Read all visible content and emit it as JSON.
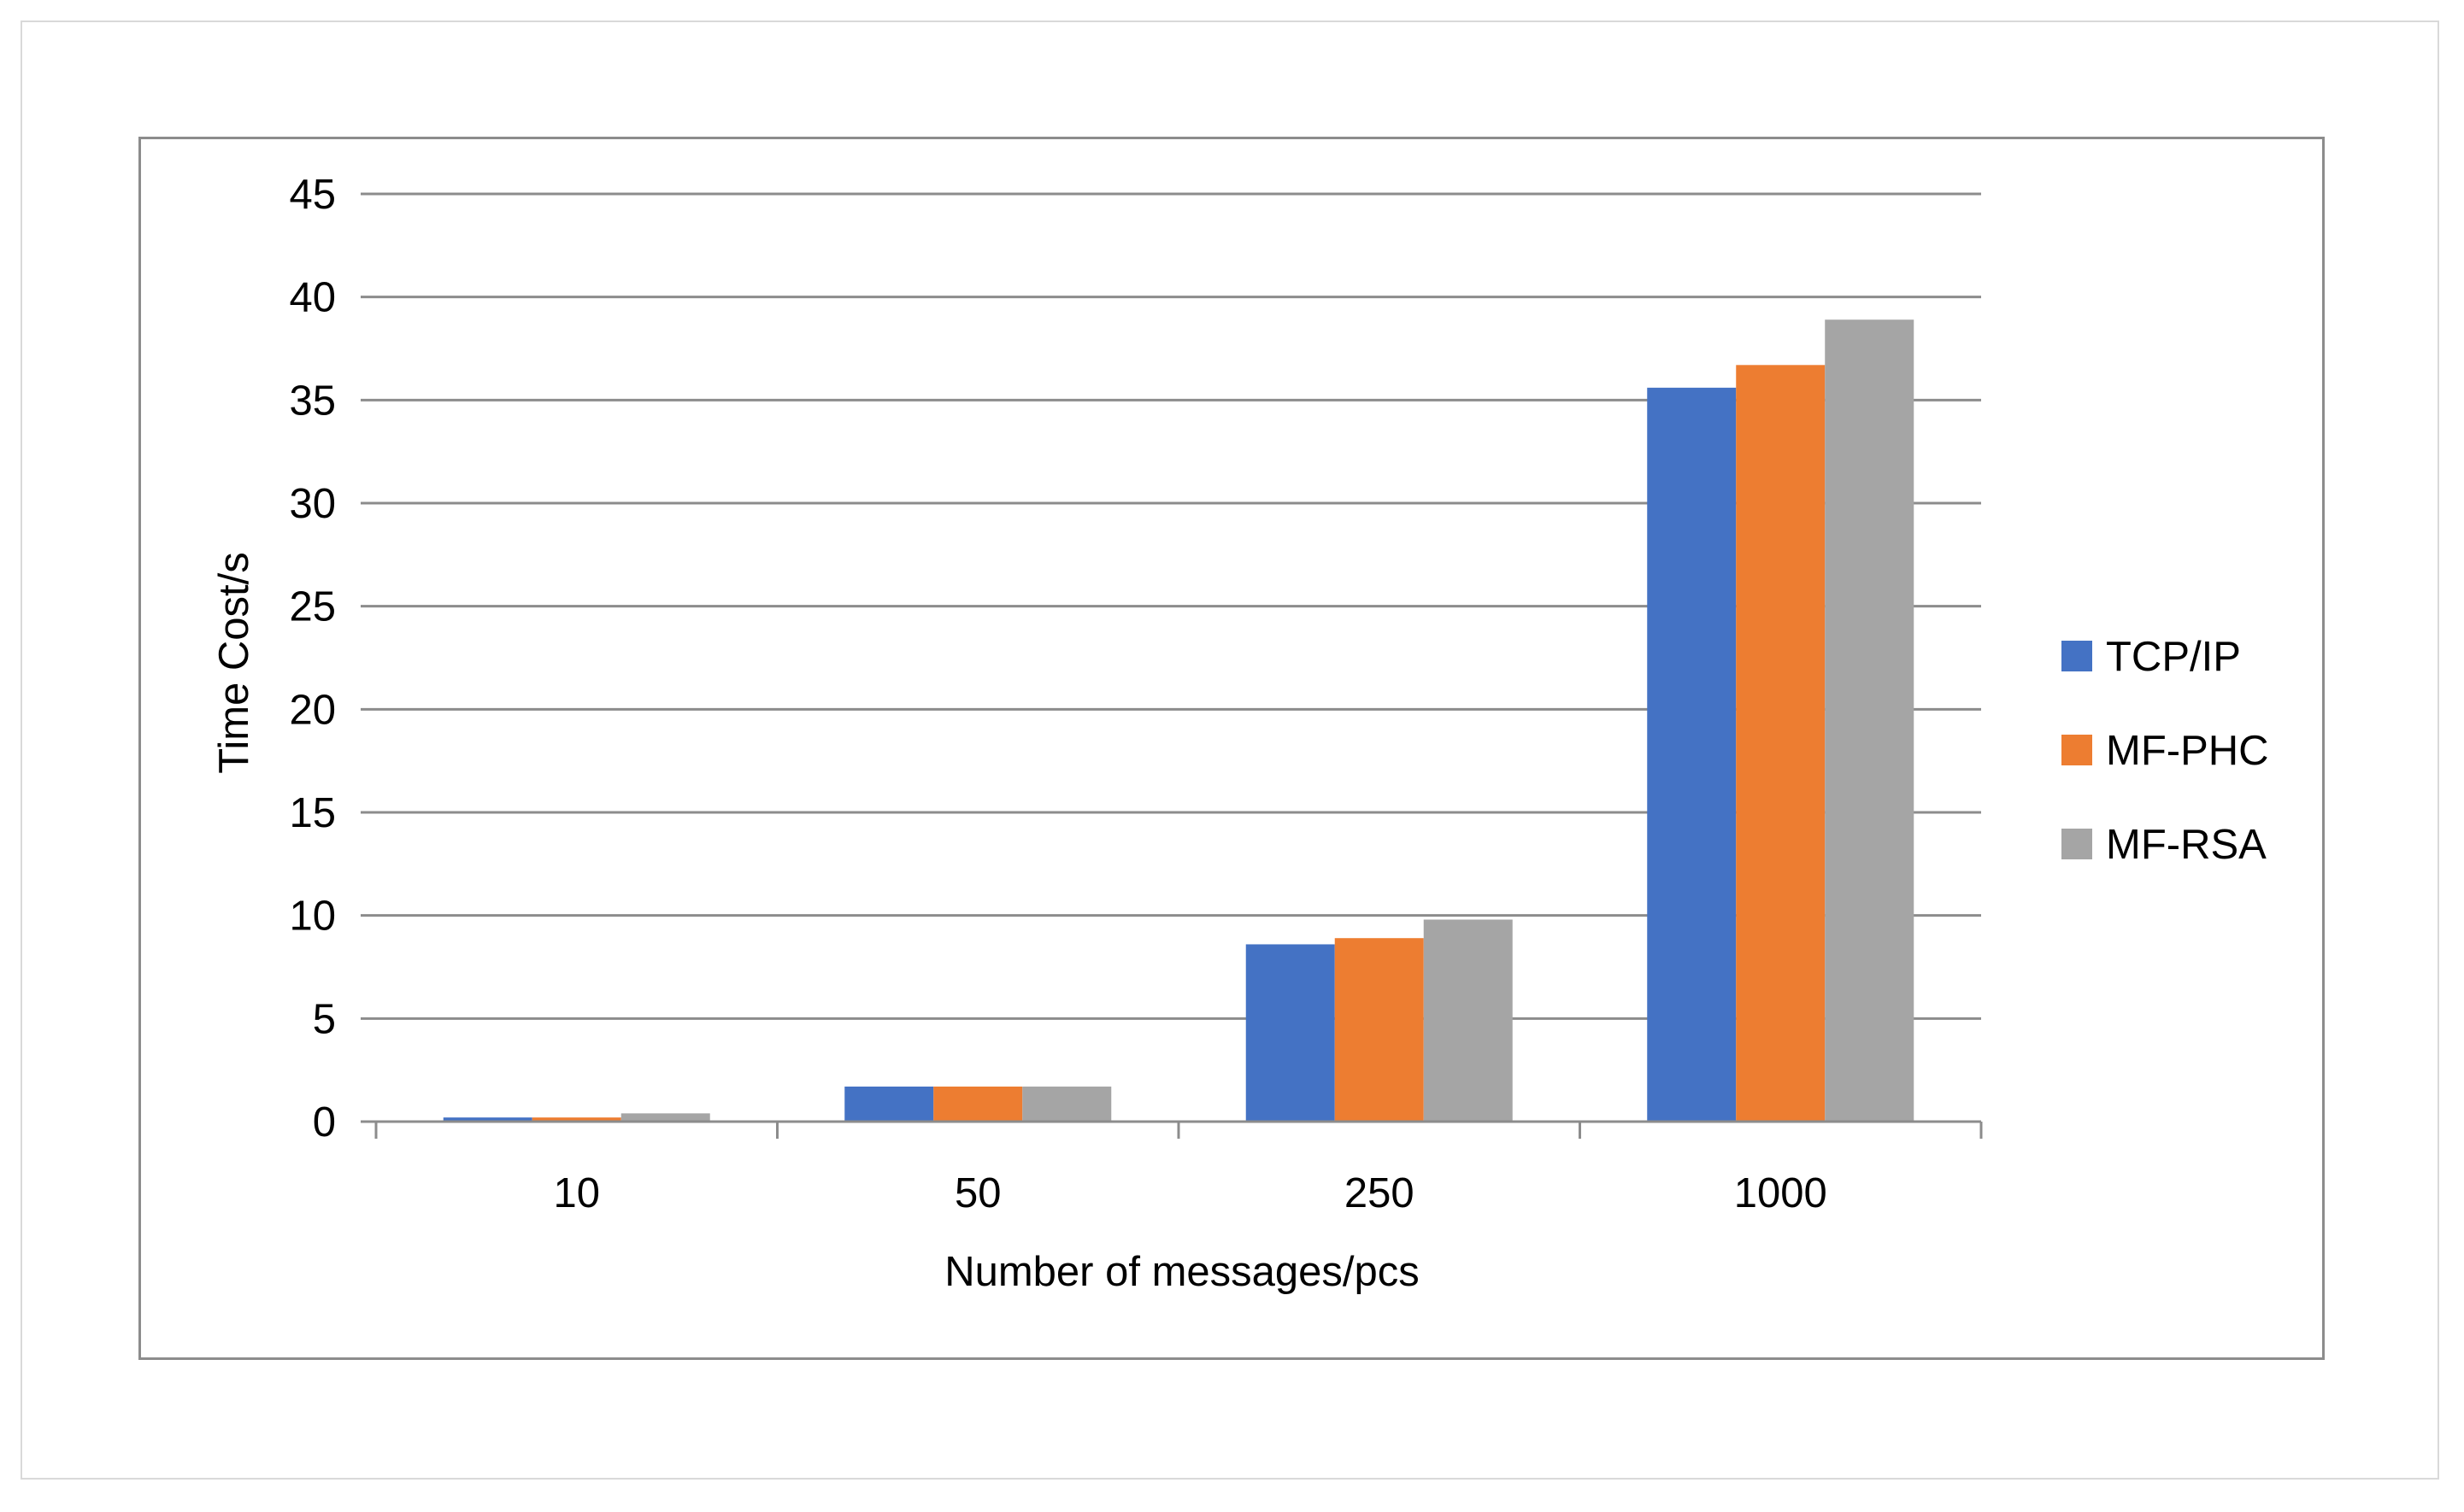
{
  "chart_data": {
    "type": "bar",
    "title": "",
    "xlabel": "Number of messages/pcs",
    "ylabel": "Time Cost/s",
    "categories": [
      "10",
      "50",
      "250",
      "1000"
    ],
    "series": [
      {
        "name": "TCP/IP",
        "color": "#4472c4",
        "values": [
          0.2,
          1.7,
          8.6,
          35.6
        ]
      },
      {
        "name": "MF-PHC",
        "color": "#ed7d31",
        "values": [
          0.2,
          1.7,
          8.9,
          36.7
        ]
      },
      {
        "name": "MF-RSA",
        "color": "#a5a5a5",
        "values": [
          0.4,
          1.7,
          9.8,
          38.9
        ]
      }
    ],
    "ylim": [
      0,
      45
    ],
    "yticks": [
      "0",
      "5",
      "10",
      "15",
      "20",
      "25",
      "30",
      "35",
      "40",
      "45"
    ],
    "grid": true,
    "legend_position": "right"
  }
}
